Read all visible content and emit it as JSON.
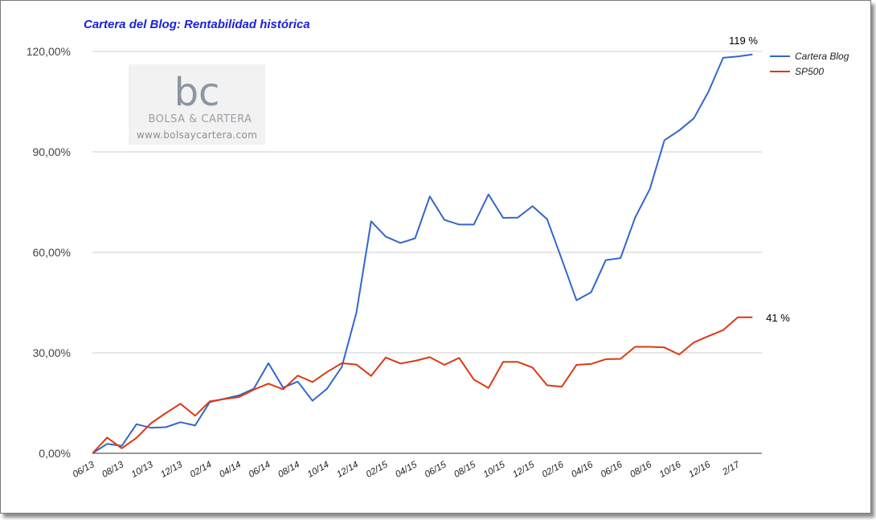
{
  "chart_data": {
    "type": "line",
    "title": "Cartera del Blog: Rentabilidad histórica",
    "xlabel": "",
    "ylabel": "",
    "ylim": [
      0,
      120
    ],
    "yticks": [
      0,
      30,
      60,
      90,
      120
    ],
    "ytick_labels": [
      "0,00%",
      "30,00%",
      "60,00%",
      "90,00%",
      "120,00%"
    ],
    "grid": true,
    "legend_position": "right",
    "xtick_labels": [
      "06/13",
      "08/13",
      "10/13",
      "12/13",
      "02/14",
      "04/14",
      "06/14",
      "08/14",
      "10/14",
      "12/14",
      "02/15",
      "04/15",
      "06/15",
      "08/15",
      "10/15",
      "12/15",
      "02/16",
      "04/16",
      "06/16",
      "08/16",
      "10/16",
      "12/16",
      "2/17"
    ],
    "series": [
      {
        "name": "Cartera Blog",
        "color": "#3366cc",
        "values": [
          0,
          2.8,
          2.2,
          8.7,
          7.6,
          7.8,
          9.3,
          8.3,
          15.3,
          16.3,
          17.3,
          19.3,
          26.9,
          19.6,
          21.4,
          15.7,
          19.3,
          25.8,
          42,
          69.3,
          64.7,
          62.8,
          64.2,
          76.7,
          69.7,
          68.3,
          68.3,
          77.3,
          70.3,
          70.4,
          73.8,
          69.9,
          57.9,
          45.7,
          48.1,
          57.7,
          58.3,
          70.4,
          78.9,
          93.5,
          96.4,
          100,
          108,
          118.1,
          118.5,
          119.1
        ]
      },
      {
        "name": "SP500",
        "color": "#dc3912",
        "values": [
          0,
          4.7,
          1.5,
          4.6,
          9,
          12,
          14.8,
          11.2,
          15.5,
          16.2,
          16.8,
          19,
          20.8,
          19.1,
          23.2,
          21.3,
          24.3,
          26.9,
          26.5,
          23.1,
          28.6,
          26.8,
          27.6,
          28.7,
          26.4,
          28.5,
          22,
          19.5,
          27.3,
          27.3,
          25.6,
          20.3,
          19.9,
          26.4,
          26.7,
          28.1,
          28.2,
          31.8,
          31.8,
          31.6,
          29.5,
          33.1,
          35,
          36.8,
          40.6,
          40.6
        ]
      }
    ],
    "annotations": [
      {
        "text": "119 %",
        "series": "Cartera Blog"
      },
      {
        "text": "41 %",
        "series": "SP500"
      }
    ]
  },
  "watermark": {
    "logo": "bc",
    "brand": "BOLSA & CARTERA",
    "url": "www.bolsaycartera.com"
  }
}
